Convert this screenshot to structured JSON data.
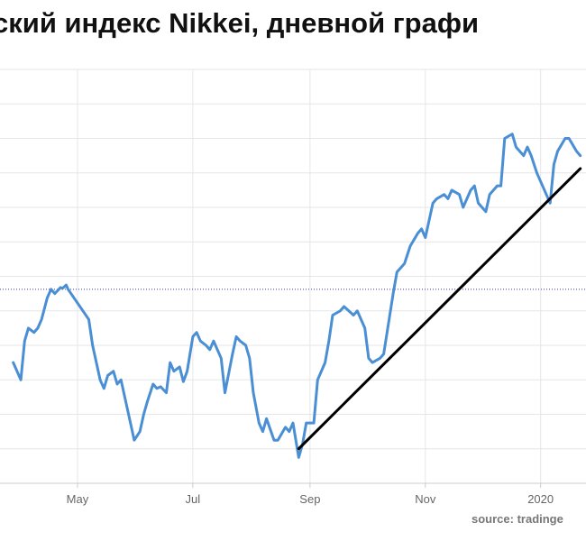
{
  "chart_data": {
    "type": "line",
    "title": "ский индекс Nikkei, дневной графи",
    "source": "source: tradinge",
    "x_ticks": [
      "May",
      "Jul",
      "Sep",
      "Nov",
      "2020"
    ],
    "grid": true,
    "colors": {
      "series": "#4a8fd4",
      "trendline": "#000000",
      "reference": "#3333aa",
      "grid": "#e6e6e6"
    },
    "series": [
      {
        "color": "#4a8fd4",
        "x": [
          "2019-03-28",
          "2019-04-01",
          "2019-04-03",
          "2019-04-05",
          "2019-04-08",
          "2019-04-10",
          "2019-04-12",
          "2019-04-15",
          "2019-04-17",
          "2019-04-19",
          "2019-04-22",
          "2019-04-23",
          "2019-04-25",
          "2019-04-26",
          "2019-05-07",
          "2019-05-09",
          "2019-05-13",
          "2019-05-15",
          "2019-05-17",
          "2019-05-20",
          "2019-05-22",
          "2019-05-24",
          "2019-05-27",
          "2019-05-29",
          "2019-05-31",
          "2019-06-03",
          "2019-06-05",
          "2019-06-07",
          "2019-06-10",
          "2019-06-12",
          "2019-06-14",
          "2019-06-17",
          "2019-06-19",
          "2019-06-21",
          "2019-06-24",
          "2019-06-26",
          "2019-06-28",
          "2019-07-01",
          "2019-07-03",
          "2019-07-05",
          "2019-07-08",
          "2019-07-10",
          "2019-07-12",
          "2019-07-16",
          "2019-07-18",
          "2019-07-22",
          "2019-07-24",
          "2019-07-26",
          "2019-07-29",
          "2019-07-31",
          "2019-08-02",
          "2019-08-05",
          "2019-08-07",
          "2019-08-09",
          "2019-08-13",
          "2019-08-15",
          "2019-08-19",
          "2019-08-21",
          "2019-08-23",
          "2019-08-26",
          "2019-08-28",
          "2019-08-30",
          "2019-09-03",
          "2019-09-05",
          "2019-09-09",
          "2019-09-11",
          "2019-09-13",
          "2019-09-17",
          "2019-09-19",
          "2019-09-24",
          "2019-09-26",
          "2019-09-30",
          "2019-10-02",
          "2019-10-04",
          "2019-10-08",
          "2019-10-10",
          "2019-10-15",
          "2019-10-17",
          "2019-10-21",
          "2019-10-24",
          "2019-10-28",
          "2019-10-30",
          "2019-11-01",
          "2019-11-05",
          "2019-11-07",
          "2019-11-11",
          "2019-11-13",
          "2019-11-15",
          "2019-11-19",
          "2019-11-21",
          "2019-11-25",
          "2019-11-27",
          "2019-11-29",
          "2019-12-03",
          "2019-12-05",
          "2019-12-09",
          "2019-12-11",
          "2019-12-13",
          "2019-12-17",
          "2019-12-19",
          "2019-12-23",
          "2019-12-25",
          "2019-12-27",
          "2019-12-30",
          "2020-01-06",
          "2020-01-08",
          "2020-01-10",
          "2020-01-14",
          "2020-01-16",
          "2020-01-20",
          "2020-01-22"
        ],
        "y": [
          21400,
          21200,
          21650,
          21800,
          21750,
          21800,
          21900,
          22150,
          22250,
          22200,
          22270,
          22260,
          22300,
          22250,
          21900,
          21600,
          21200,
          21100,
          21250,
          21300,
          21150,
          21200,
          20900,
          20700,
          20500,
          20600,
          20800,
          20950,
          21150,
          21100,
          21120,
          21050,
          21400,
          21300,
          21350,
          21180,
          21300,
          21700,
          21750,
          21650,
          21600,
          21550,
          21650,
          21450,
          21050,
          21500,
          21700,
          21650,
          21600,
          21450,
          21050,
          20700,
          20600,
          20750,
          20500,
          20500,
          20650,
          20600,
          20700,
          20300,
          20450,
          20700,
          20700,
          21200,
          21400,
          21650,
          21950,
          22000,
          22050,
          21950,
          22000,
          21800,
          21450,
          21400,
          21450,
          21500,
          22200,
          22450,
          22550,
          22750,
          22900,
          22950,
          22850,
          23250,
          23300,
          23350,
          23300,
          23400,
          23350,
          23200,
          23400,
          23450,
          23250,
          23150,
          23350,
          23450,
          23450,
          24000,
          24050,
          23900,
          23800,
          23900,
          23800,
          23600,
          23250,
          23700,
          23850,
          24000,
          24000,
          23850,
          23800
        ]
      }
    ],
    "trendline": {
      "x": [
        "2019-08-26",
        "2020-01-22"
      ],
      "y": [
        20400,
        23650
      ]
    },
    "reference_line": {
      "y": 22250
    },
    "ylim": [
      20000,
      24800
    ]
  }
}
